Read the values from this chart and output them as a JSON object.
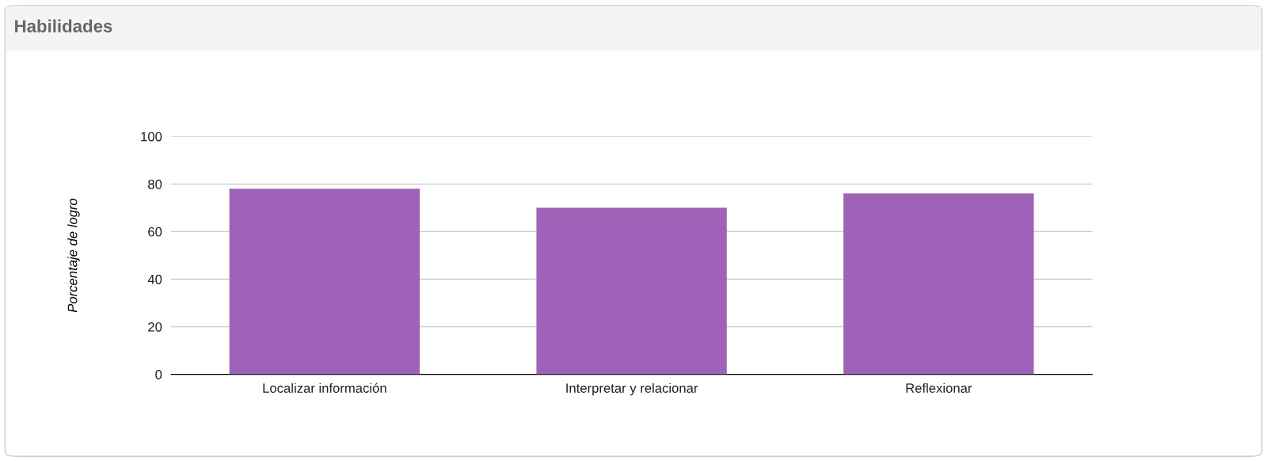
{
  "chart_data": {
    "type": "bar",
    "title": "Habilidades",
    "ylabel": "Porcentaje de logro",
    "categories": [
      "Localizar información",
      "Interpretar y relacionar",
      "Reflexionar"
    ],
    "values": [
      78,
      70,
      76
    ],
    "color": "#a062b8",
    "ylim": [
      0,
      100
    ],
    "yticks": [
      0,
      20,
      40,
      60,
      80,
      100
    ],
    "grid": "y"
  }
}
